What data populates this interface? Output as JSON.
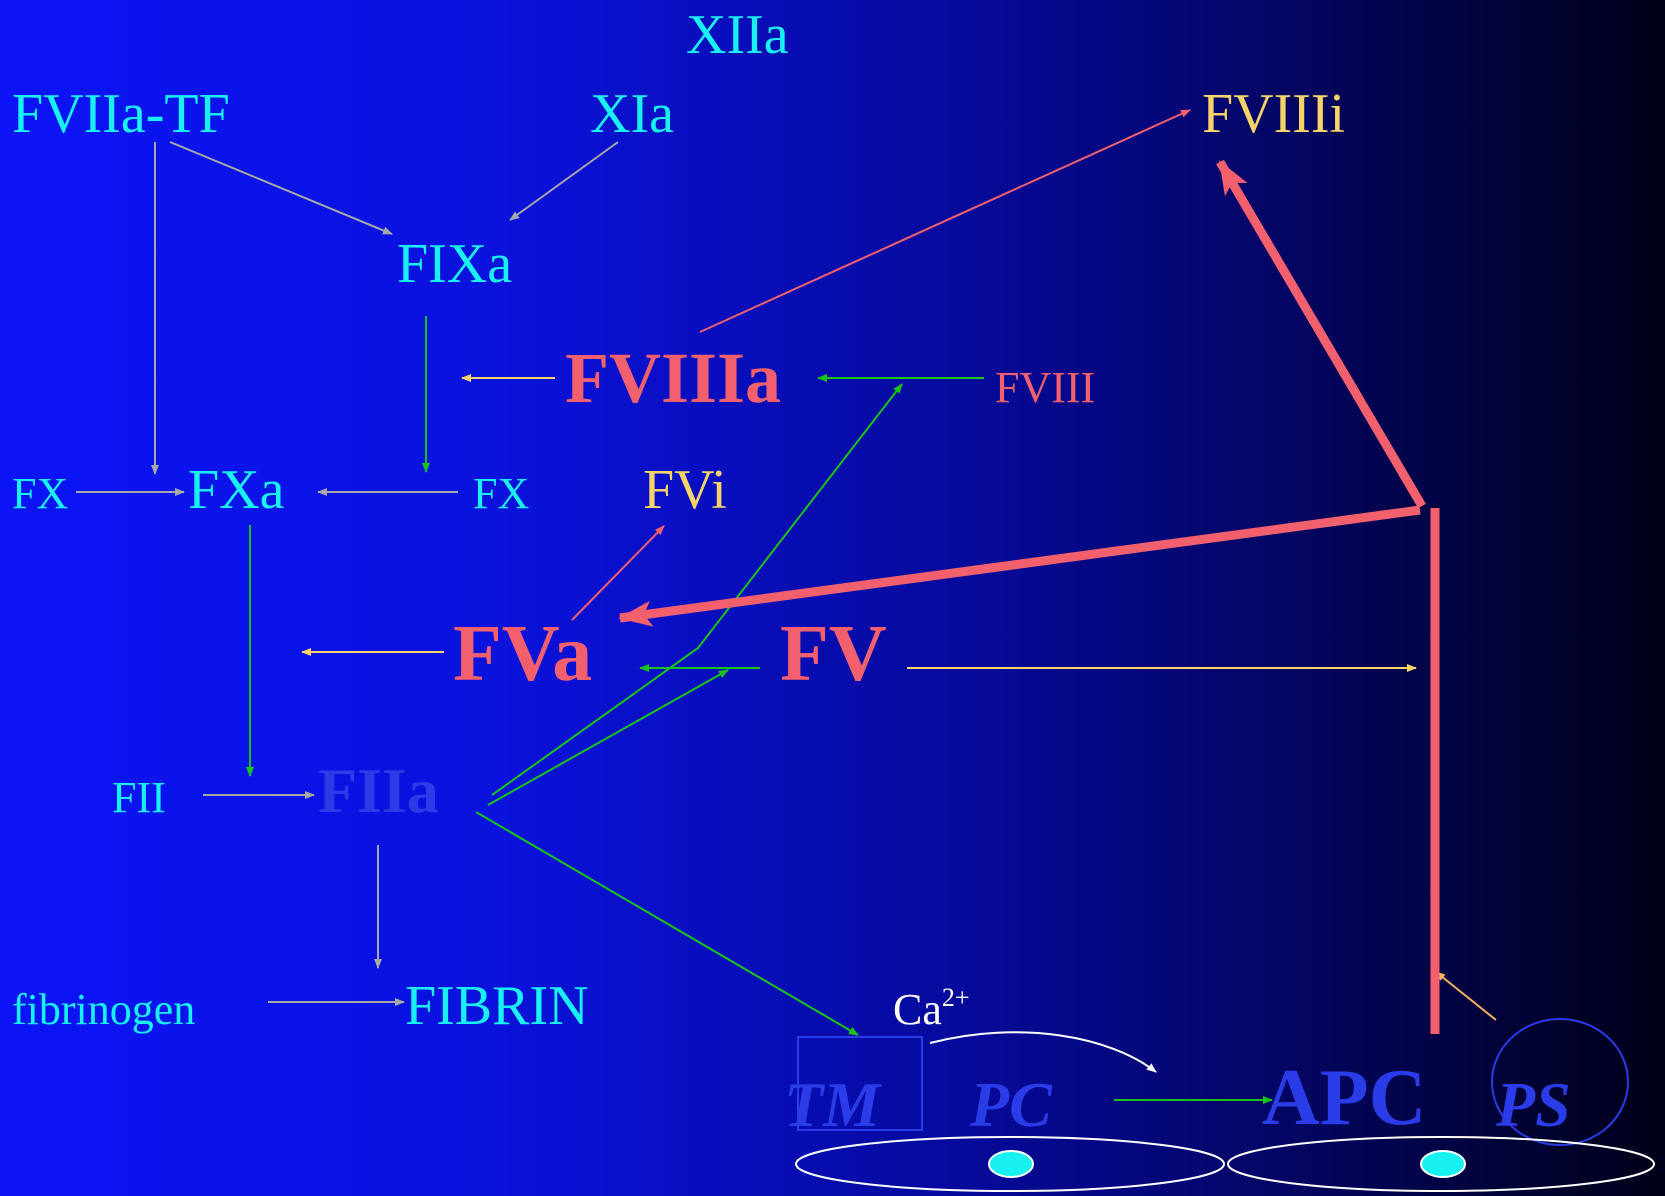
{
  "colors": {
    "cyan": "#19f0f0",
    "yellow": "#f7d46a",
    "salmon": "#f2606e",
    "blue_text": "#2a3ce8",
    "green": "#19c419",
    "gray": "#a8a8a8",
    "white": "#ffffff",
    "orange": "#f5b060"
  },
  "labels": {
    "xiia": "XIIa",
    "fviia_tf": "FVIIa-TF",
    "xia": "XIa",
    "fviiii": "FVIIIi",
    "fixa": "FIXa",
    "fviiia": "FVIIIa",
    "fviii": "FVIII",
    "fx_left": "FX",
    "fxa": "FXa",
    "fx_right": "FX",
    "fvi": "FVi",
    "fva": "FVa",
    "fv": "FV",
    "fii": "FII",
    "fiia": "FIIa",
    "fibrinogen": "fibrinogen",
    "fibrin": "FIBRIN",
    "ca": "Ca",
    "ca_sup": "2+",
    "tm": "TM",
    "pc": "PC",
    "apc": "APC",
    "ps": "PS"
  }
}
